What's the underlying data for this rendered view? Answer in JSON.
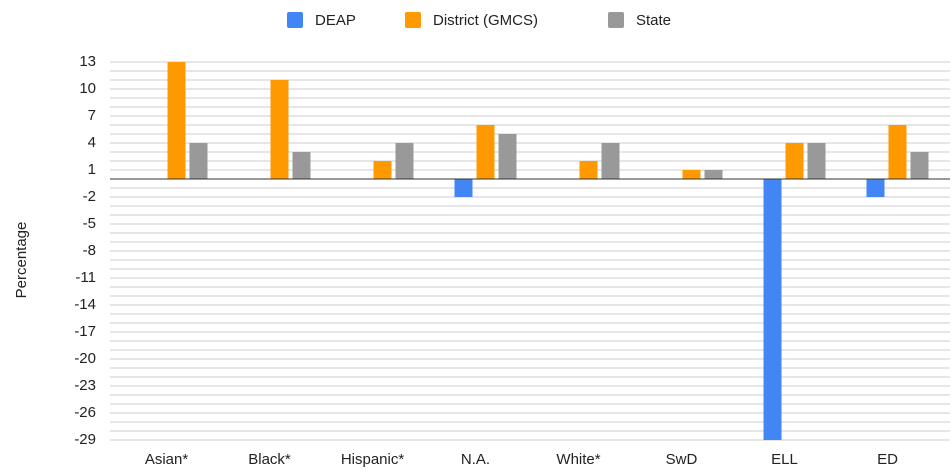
{
  "chart_data": {
    "type": "bar",
    "y_label": "Percentage",
    "categories": [
      "Asian*",
      "Black*",
      "Hispanic*",
      "N.A.",
      "White*",
      "SwD",
      "ELL",
      "ED"
    ],
    "series": [
      {
        "name": "DEAP",
        "color": "#4285f4",
        "values": [
          null,
          null,
          null,
          -2,
          null,
          null,
          -29,
          -2
        ]
      },
      {
        "name": "District (GMCS)",
        "color": "#ff9900",
        "values": [
          13,
          11,
          2,
          6,
          2,
          1,
          4,
          6
        ]
      },
      {
        "name": "State",
        "color": "#999999",
        "values": [
          4,
          3,
          4,
          5,
          4,
          1,
          4,
          3
        ]
      }
    ],
    "ylim": [
      -29,
      13
    ],
    "yticks": [
      13,
      10,
      7,
      4,
      1,
      -2,
      -5,
      -8,
      -11,
      -14,
      -17,
      -20,
      -23,
      -26,
      -29
    ],
    "minor_yticks": [
      12,
      11,
      9,
      8,
      6,
      5,
      3,
      2,
      0,
      -1,
      -3,
      -4,
      -6,
      -7,
      -9,
      -10,
      -12,
      -13,
      -15,
      -16,
      -18,
      -19,
      -21,
      -22,
      -24,
      -25,
      -27,
      -28
    ],
    "grid": true,
    "legend": "top"
  }
}
